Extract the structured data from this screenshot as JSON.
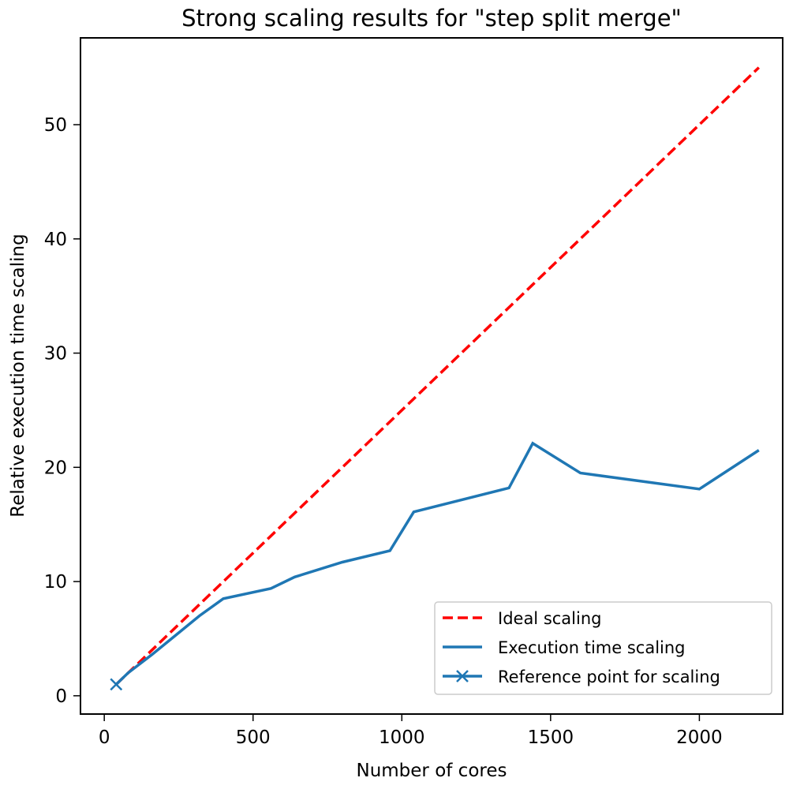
{
  "chart_data": {
    "type": "line",
    "title": "Strong scaling results for \"step split merge\"",
    "xlabel": "Number of cores",
    "ylabel": "Relative execution time scaling",
    "xlim": [
      -80,
      2280
    ],
    "ylim": [
      -1.6,
      57.6
    ],
    "xticks": [
      0,
      500,
      1000,
      1500,
      2000
    ],
    "yticks": [
      0,
      10,
      20,
      30,
      40,
      50
    ],
    "grid": false,
    "legend_position": "lower-right",
    "series": [
      {
        "name": "Ideal scaling",
        "style": "dashed",
        "color": "#ff0000",
        "x": [
          40,
          2200
        ],
        "y": [
          1,
          55
        ]
      },
      {
        "name": "Execution time scaling",
        "style": "solid",
        "color": "#1f77b4",
        "x": [
          40,
          80,
          160,
          240,
          320,
          400,
          560,
          640,
          800,
          960,
          1040,
          1360,
          1440,
          1600,
          2000,
          2200
        ],
        "y": [
          1,
          2.0,
          3.6,
          5.3,
          7.0,
          8.5,
          9.4,
          10.4,
          11.7,
          12.7,
          16.1,
          18.2,
          22.1,
          19.5,
          18.1,
          21.5
        ]
      },
      {
        "name": "Reference point for scaling",
        "style": "marker-x",
        "color": "#1f77b4",
        "x": [
          40
        ],
        "y": [
          1
        ]
      }
    ]
  }
}
